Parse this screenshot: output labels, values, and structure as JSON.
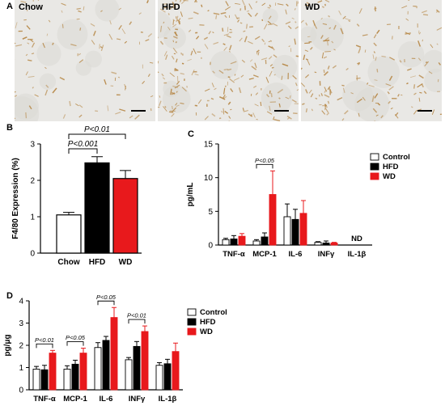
{
  "panels": {
    "A": "A",
    "B": "B",
    "C": "C",
    "D": "D"
  },
  "micrographs": [
    {
      "label": "Chow",
      "density": 0.25
    },
    {
      "label": "HFD",
      "density": 1.0
    },
    {
      "label": "WD",
      "density": 0.6
    }
  ],
  "colors": {
    "Chow": "#ffffff",
    "Control": "#ffffff",
    "HFD": "#000000",
    "WD": "#e8191c",
    "stain": "#b88a4a"
  },
  "chart_data": [
    {
      "id": "B",
      "type": "bar",
      "categories": [
        "Chow",
        "HFD",
        "WD"
      ],
      "values": [
        1.05,
        2.48,
        2.05
      ],
      "errors": [
        0.07,
        0.17,
        0.22
      ],
      "ylabel": "F4/80 Expression (%)",
      "ylim": [
        0,
        3
      ],
      "yticks": [
        "0",
        "1",
        "2",
        "3"
      ],
      "annotations": [
        {
          "text": "P<0.01",
          "from": "Chow",
          "to": "WD"
        },
        {
          "text": "P<0.001",
          "from": "Chow",
          "to": "HFD"
        }
      ]
    },
    {
      "id": "C",
      "type": "bar",
      "categories": [
        "TNF-α",
        "MCP-1",
        "IL-6",
        "INFγ",
        "IL-1β"
      ],
      "series": [
        {
          "name": "Control",
          "values": [
            0.8,
            0.6,
            4.2,
            0.4,
            null
          ],
          "errors": [
            0.2,
            0.2,
            1.9,
            0.1,
            null
          ]
        },
        {
          "name": "HFD",
          "values": [
            0.9,
            1.2,
            3.8,
            0.3,
            null
          ],
          "errors": [
            0.5,
            0.6,
            1.5,
            0.3,
            null
          ]
        },
        {
          "name": "WD",
          "values": [
            1.3,
            7.5,
            4.7,
            0.3,
            null
          ],
          "errors": [
            0.4,
            3.5,
            1.9,
            0.1,
            null
          ]
        }
      ],
      "ylabel": "pg/mL",
      "ylim": [
        0,
        15
      ],
      "yticks": [
        "0",
        "5",
        "10",
        "15"
      ],
      "nd_label": "ND",
      "annotations": [
        {
          "text": "P<0.05",
          "category": "MCP-1"
        }
      ],
      "legend": "right"
    },
    {
      "id": "D",
      "type": "bar",
      "categories": [
        "TNF-α",
        "MCP-1",
        "IL-6",
        "INFγ",
        "IL-1β"
      ],
      "series": [
        {
          "name": "Control",
          "values": [
            0.93,
            0.93,
            1.9,
            1.35,
            1.1
          ],
          "errors": [
            0.12,
            0.15,
            0.22,
            0.1,
            0.12
          ]
        },
        {
          "name": "HFD",
          "values": [
            0.9,
            1.15,
            2.22,
            1.95,
            1.17
          ],
          "errors": [
            0.2,
            0.18,
            0.18,
            0.22,
            0.2
          ]
        },
        {
          "name": "WD",
          "values": [
            1.65,
            1.65,
            3.25,
            2.62,
            1.72
          ],
          "errors": [
            0.12,
            0.22,
            0.45,
            0.25,
            0.38
          ]
        }
      ],
      "ylabel": "pg/μg",
      "ylim": [
        0,
        4
      ],
      "yticks": [
        "0",
        "1",
        "2",
        "3",
        "4"
      ],
      "annotations": [
        {
          "text": "P<0.01",
          "category": "TNF-α"
        },
        {
          "text": "P<0.05",
          "category": "MCP-1"
        },
        {
          "text": "P<0.05",
          "category": "IL-6"
        },
        {
          "text": "P<0.01",
          "category": "INFγ"
        }
      ],
      "legend": "right"
    }
  ]
}
